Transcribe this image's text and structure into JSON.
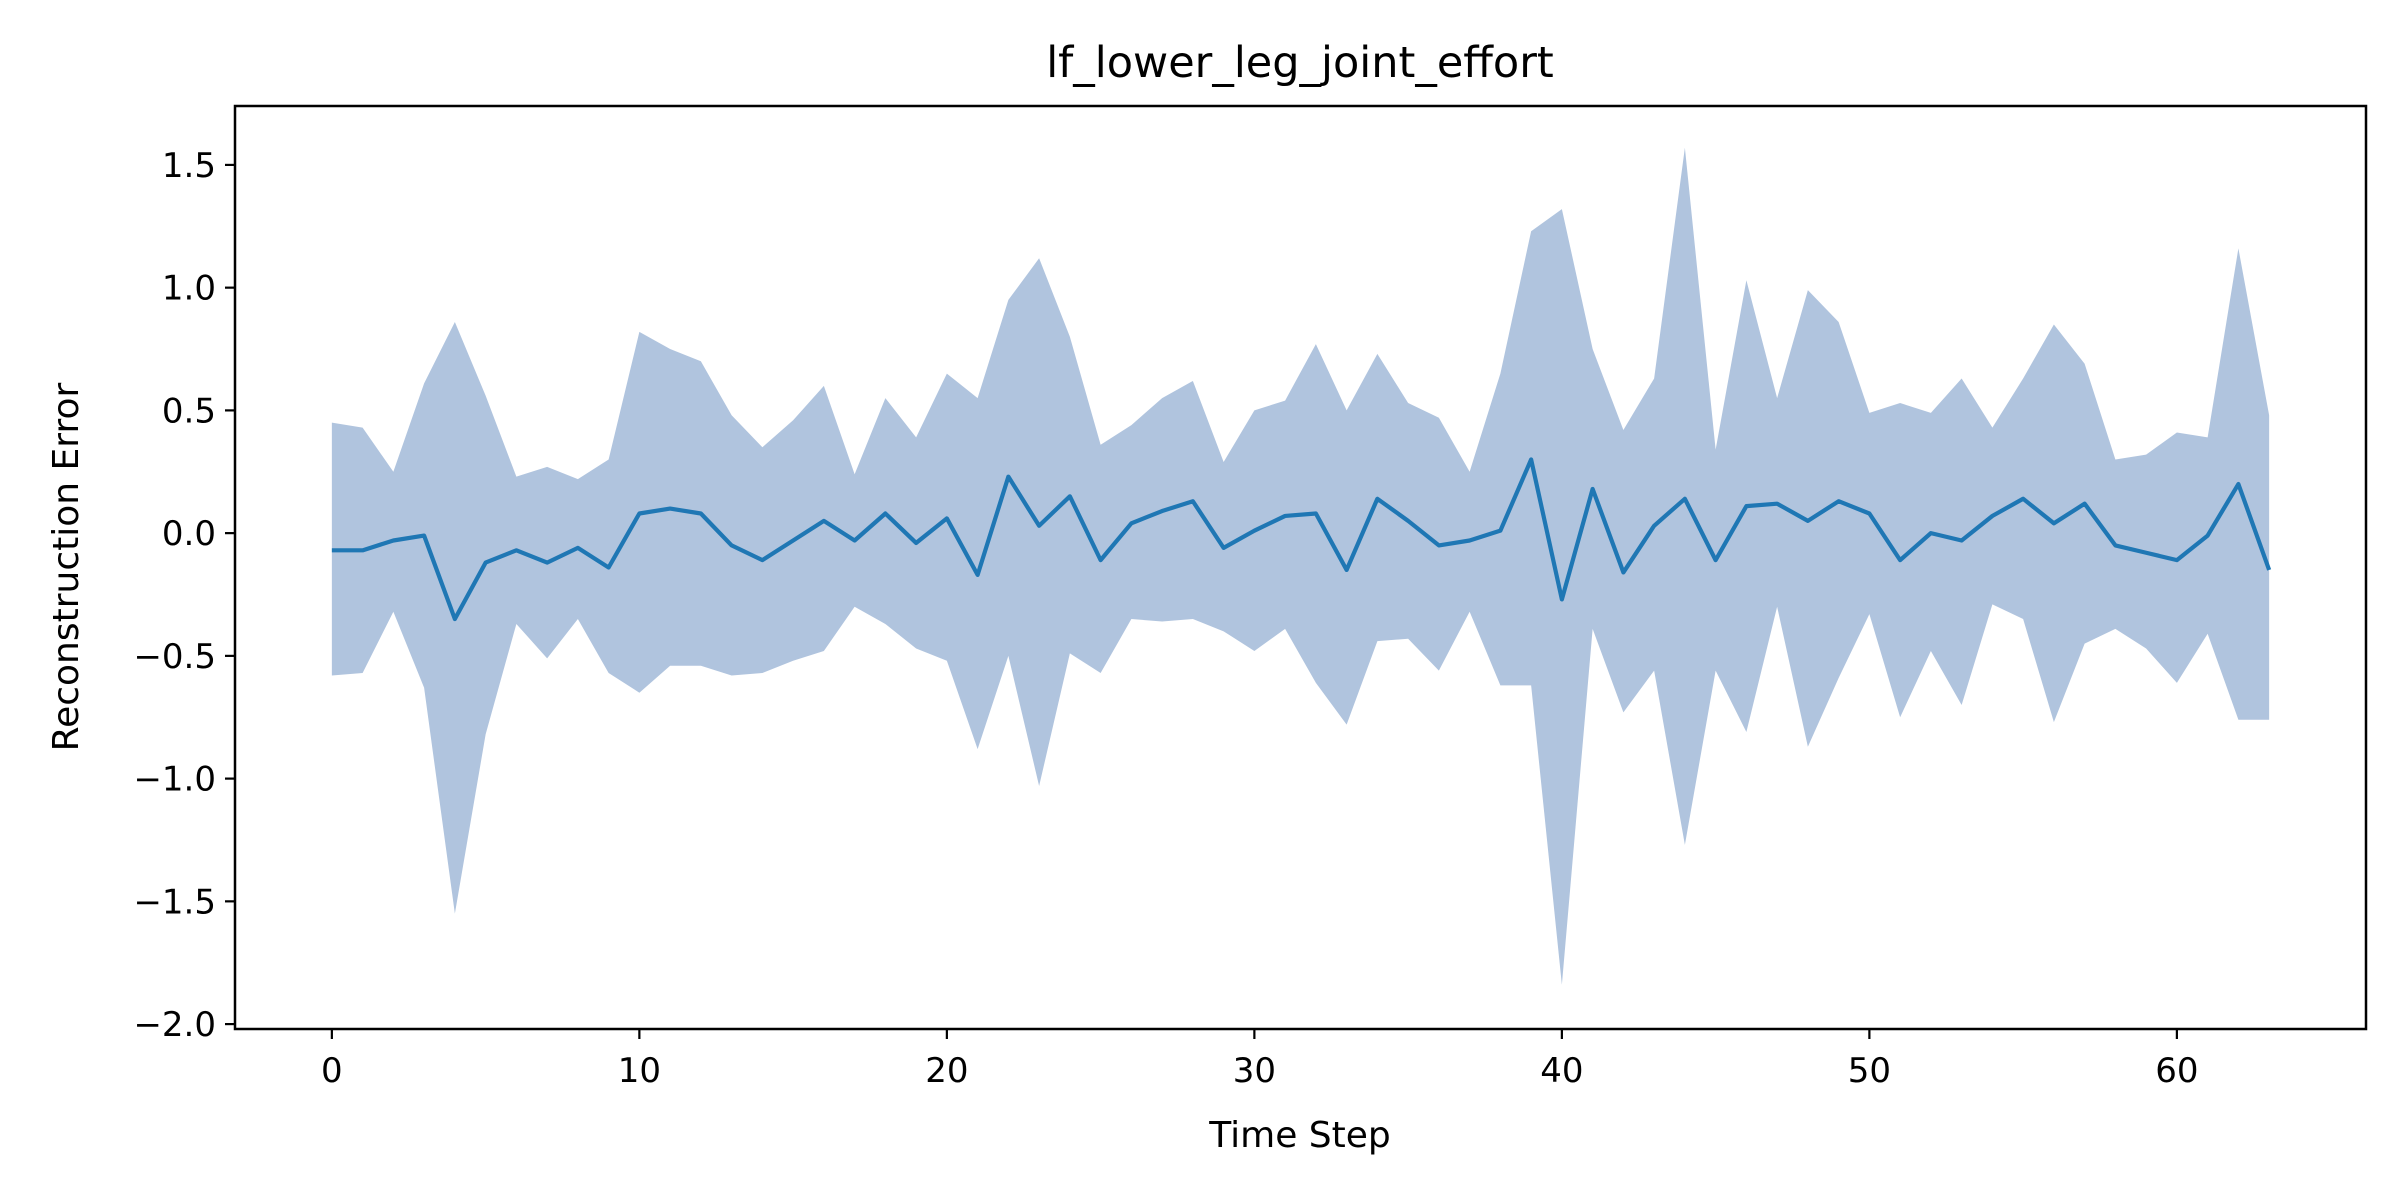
{
  "chart_data": {
    "type": "line",
    "title": "lf_lower_leg_joint_effort",
    "xlabel": "Time Step",
    "ylabel": "Reconstruction Error",
    "xlim": [
      -3.15,
      66.15
    ],
    "ylim": [
      -2.02,
      1.74
    ],
    "x_ticks": [
      0,
      10,
      20,
      30,
      40,
      50,
      60
    ],
    "y_ticks": [
      -2.0,
      -1.5,
      -1.0,
      -0.5,
      0.0,
      0.5,
      1.0,
      1.5
    ],
    "x_tick_labels": [
      "0",
      "10",
      "20",
      "30",
      "40",
      "50",
      "60"
    ],
    "y_tick_labels": [
      "−2.0",
      "−1.5",
      "−1.0",
      "−0.5",
      "0.0",
      "0.5",
      "1.0",
      "1.5"
    ],
    "grid": false,
    "colors": {
      "line": "#1f77b4",
      "band": "#b0c4de",
      "axes": "#000000",
      "background": "#ffffff"
    },
    "x": [
      0,
      1,
      2,
      3,
      4,
      5,
      6,
      7,
      8,
      9,
      10,
      11,
      12,
      13,
      14,
      15,
      16,
      17,
      18,
      19,
      20,
      21,
      22,
      23,
      24,
      25,
      26,
      27,
      28,
      29,
      30,
      31,
      32,
      33,
      34,
      35,
      36,
      37,
      38,
      39,
      40,
      41,
      42,
      43,
      44,
      45,
      46,
      47,
      48,
      49,
      50,
      51,
      52,
      53,
      54,
      55,
      56,
      57,
      58,
      59,
      60,
      61,
      62,
      63
    ],
    "series": [
      {
        "values": [
          -0.07,
          -0.07,
          -0.03,
          -0.01,
          -0.35,
          -0.12,
          -0.07,
          -0.12,
          -0.06,
          -0.14,
          0.08,
          0.1,
          0.08,
          -0.05,
          -0.11,
          -0.03,
          0.05,
          -0.03,
          0.08,
          -0.04,
          0.06,
          -0.17,
          0.23,
          0.03,
          0.15,
          -0.11,
          0.04,
          0.09,
          0.13,
          -0.06,
          0.01,
          0.07,
          0.08,
          -0.15,
          0.14,
          0.05,
          -0.05,
          -0.03,
          0.01,
          0.3,
          -0.27,
          0.18,
          -0.16,
          0.03,
          0.14,
          -0.11,
          0.11,
          0.12,
          0.05,
          0.13,
          0.08,
          -0.11,
          0.0,
          -0.03,
          0.07,
          0.14,
          0.04,
          0.12,
          -0.05,
          -0.08,
          -0.11,
          -0.01,
          0.2,
          -0.15
        ]
      }
    ],
    "band": {
      "upper": [
        0.45,
        0.43,
        0.25,
        0.61,
        0.86,
        0.56,
        0.23,
        0.27,
        0.22,
        0.3,
        0.82,
        0.75,
        0.7,
        0.48,
        0.35,
        0.46,
        0.6,
        0.24,
        0.55,
        0.39,
        0.65,
        0.55,
        0.95,
        1.12,
        0.8,
        0.36,
        0.44,
        0.55,
        0.62,
        0.29,
        0.5,
        0.54,
        0.77,
        0.5,
        0.73,
        0.53,
        0.47,
        0.25,
        0.65,
        1.23,
        1.32,
        0.75,
        0.42,
        0.63,
        1.57,
        0.34,
        1.03,
        0.55,
        0.99,
        0.86,
        0.49,
        0.53,
        0.49,
        0.63,
        0.43,
        0.63,
        0.85,
        0.69,
        0.3,
        0.32,
        0.41,
        0.39,
        1.16,
        0.48
      ],
      "lower": [
        -0.58,
        -0.57,
        -0.32,
        -0.63,
        -1.55,
        -0.82,
        -0.37,
        -0.51,
        -0.35,
        -0.57,
        -0.65,
        -0.54,
        -0.54,
        -0.58,
        -0.57,
        -0.52,
        -0.48,
        -0.3,
        -0.37,
        -0.47,
        -0.52,
        -0.88,
        -0.5,
        -1.03,
        -0.49,
        -0.57,
        -0.35,
        -0.36,
        -0.35,
        -0.4,
        -0.48,
        -0.39,
        -0.61,
        -0.78,
        -0.44,
        -0.43,
        -0.56,
        -0.32,
        -0.62,
        -0.62,
        -1.84,
        -0.39,
        -0.73,
        -0.56,
        -1.27,
        -0.56,
        -0.81,
        -0.3,
        -0.87,
        -0.59,
        -0.33,
        -0.75,
        -0.48,
        -0.7,
        -0.29,
        -0.35,
        -0.77,
        -0.45,
        -0.39,
        -0.47,
        -0.61,
        -0.41,
        -0.76,
        -0.76
      ]
    }
  }
}
